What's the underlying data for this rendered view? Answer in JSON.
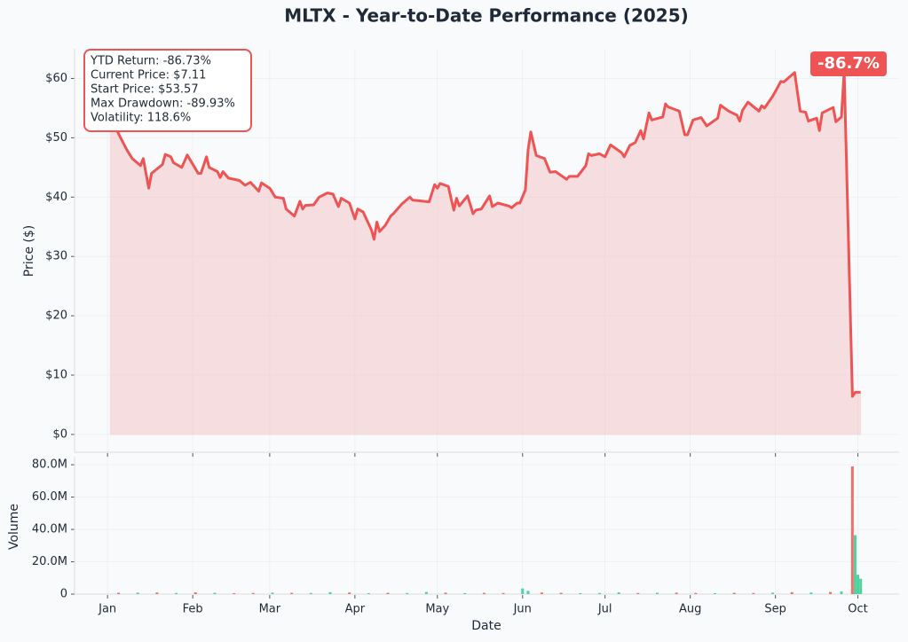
{
  "chart_data": [
    {
      "type": "line",
      "title": "MLTX - Year-to-Date Performance (2025)",
      "ylabel": "Price ($)",
      "color": "#ef5454",
      "fill_color": "#f5c2c5",
      "grid": true,
      "xlim": [
        -11,
        289
      ],
      "xticks": [
        {
          "value": 1,
          "label": "Jan"
        },
        {
          "value": 32,
          "label": "Feb"
        },
        {
          "value": 60,
          "label": "Mar"
        },
        {
          "value": 91,
          "label": "Apr"
        },
        {
          "value": 121,
          "label": "May"
        },
        {
          "value": 152,
          "label": "Jun"
        },
        {
          "value": 182,
          "label": "Jul"
        },
        {
          "value": 213,
          "label": "Aug"
        },
        {
          "value": 244,
          "label": "Sep"
        },
        {
          "value": 274,
          "label": "Oct"
        }
      ],
      "ylim": [
        -3,
        65
      ],
      "yticks": [
        {
          "value": 0,
          "label": "$0"
        },
        {
          "value": 10,
          "label": "$10"
        },
        {
          "value": 20,
          "label": "$20"
        },
        {
          "value": 30,
          "label": "$30"
        },
        {
          "value": 40,
          "label": "$40"
        },
        {
          "value": 50,
          "label": "$50"
        },
        {
          "value": 60,
          "label": "$60"
        }
      ],
      "stats_box": [
        "YTD Return: -86.73%",
        "Current Price: $7.11",
        "Start Price: $53.57",
        "Max Drawdown: -89.93%",
        "Volatility: 118.6%"
      ],
      "badge": "-86.7%",
      "x": [
        2,
        5,
        8,
        10,
        13,
        14,
        16,
        17,
        21,
        22,
        24,
        25,
        28,
        30,
        34,
        35,
        37,
        38,
        41,
        42,
        43,
        45,
        49,
        51,
        53,
        56,
        57,
        60,
        62,
        65,
        66,
        69,
        71,
        72,
        73,
        76,
        78,
        81,
        83,
        85,
        86,
        89,
        91,
        92,
        94,
        97,
        98,
        99,
        100,
        102,
        104,
        105,
        108,
        111,
        112,
        118,
        120,
        121,
        122,
        125,
        127,
        128,
        129,
        132,
        134,
        135,
        137,
        140,
        141,
        143,
        147,
        148,
        150,
        151,
        153,
        154,
        155,
        157,
        160,
        162,
        164,
        168,
        169,
        172,
        175,
        176,
        177,
        180,
        182,
        184,
        188,
        189,
        191,
        193,
        195,
        196,
        198,
        199,
        203,
        204,
        205,
        209,
        211,
        212,
        214,
        217,
        219,
        223,
        224,
        227,
        230,
        231,
        232,
        234,
        238,
        239,
        240,
        243,
        246,
        247,
        251,
        253,
        255,
        256,
        259,
        260,
        261,
        265,
        266,
        268,
        269,
        272,
        273,
        275
      ],
      "values": [
        53.57,
        50.7,
        48,
        46.5,
        45.3,
        46.5,
        41.5,
        44,
        45.5,
        47.2,
        46.8,
        45.8,
        45,
        47.1,
        44,
        44,
        46.8,
        45,
        44.3,
        43.3,
        44.3,
        43.2,
        42.8,
        42,
        42.5,
        41,
        42.4,
        41.5,
        40,
        39.8,
        38,
        36.8,
        39.3,
        38,
        38.6,
        38.7,
        40,
        40.7,
        40.5,
        38.4,
        39.8,
        39,
        36.3,
        38,
        37.5,
        34.5,
        32.9,
        35.8,
        34.2,
        35.2,
        36.8,
        37.2,
        38.8,
        40,
        39.5,
        39.2,
        42.1,
        41.5,
        42.3,
        41.8,
        37.8,
        39.8,
        38.5,
        40.2,
        37.2,
        37.8,
        38,
        40.2,
        38.4,
        39,
        38.5,
        38.2,
        39,
        39,
        41.2,
        48,
        51,
        47,
        46.5,
        44.2,
        44.3,
        43,
        43.5,
        43.5,
        45.3,
        47.3,
        47,
        47.3,
        46.8,
        48.8,
        47.5,
        46.8,
        48.7,
        49.2,
        51.2,
        49.8,
        54.2,
        53,
        53.5,
        55.7,
        55.2,
        54.5,
        50.5,
        50.5,
        53,
        53.4,
        52,
        53.3,
        55.5,
        54.5,
        53.8,
        52.8,
        54.6,
        56,
        54.5,
        55.4,
        55,
        57,
        59.5,
        59.4,
        61,
        54.5,
        54.3,
        52.8,
        53.3,
        51.2,
        54.2,
        55.1,
        52.7,
        53.5,
        61.2,
        6.4,
        7.1,
        7.11
      ]
    },
    {
      "type": "bar",
      "ylabel": "Volume",
      "xlabel": "Date",
      "grid": true,
      "xlim": [
        -11,
        289
      ],
      "ylim": [
        0,
        85000000
      ],
      "yticks": [
        0,
        {
          "value": 20000000,
          "label": "20.0M"
        },
        {
          "value": 40000000,
          "label": "40.0M"
        },
        {
          "value": 60000000,
          "label": "60.0M"
        },
        {
          "value": 80000000,
          "label": "80.0M"
        }
      ],
      "x": [
        5,
        12,
        19,
        26,
        33,
        40,
        47,
        54,
        61,
        68,
        75,
        82,
        89,
        96,
        103,
        110,
        117,
        124,
        131,
        138,
        145,
        152,
        154,
        159,
        166,
        173,
        180,
        187,
        194,
        201,
        208,
        215,
        222,
        229,
        236,
        243,
        250,
        257,
        264,
        268,
        272,
        273,
        274,
        275
      ],
      "values": [
        800000,
        900000,
        1000000,
        700000,
        1100000,
        800000,
        600000,
        700000,
        900000,
        800000,
        700000,
        1200000,
        1000000,
        600000,
        800000,
        700000,
        1300000,
        900000,
        600000,
        800000,
        700000,
        3500000,
        2000000,
        1000000,
        800000,
        600000,
        700000,
        1100000,
        700000,
        800000,
        900000,
        700000,
        600000,
        800000,
        700000,
        900000,
        1200000,
        1000000,
        1300000,
        1600000,
        79000000,
        36500000,
        12000000,
        9500000
      ],
      "colors": [
        "#ef7070",
        "#4fd1a0",
        "#ef7070",
        "#4fd1a0",
        "#ef7070",
        "#4fd1a0",
        "#ef7070",
        "#ef7070",
        "#4fd1a0",
        "#ef7070",
        "#4fd1a0",
        "#4fd1a0",
        "#ef7070",
        "#4fd1a0",
        "#ef7070",
        "#4fd1a0",
        "#4fd1a0",
        "#ef7070",
        "#4fd1a0",
        "#ef7070",
        "#ef7070",
        "#4fd1a0",
        "#4fd1a0",
        "#ef7070",
        "#ef7070",
        "#4fd1a0",
        "#4fd1a0",
        "#4fd1a0",
        "#ef7070",
        "#4fd1a0",
        "#ef7070",
        "#ef7070",
        "#4fd1a0",
        "#ef7070",
        "#ef7070",
        "#4fd1a0",
        "#ef7070",
        "#4fd1a0",
        "#ef7070",
        "#4fd1a0",
        "#ef7070",
        "#4fd1a0",
        "#4fd1a0",
        "#4fd1a0"
      ]
    }
  ]
}
